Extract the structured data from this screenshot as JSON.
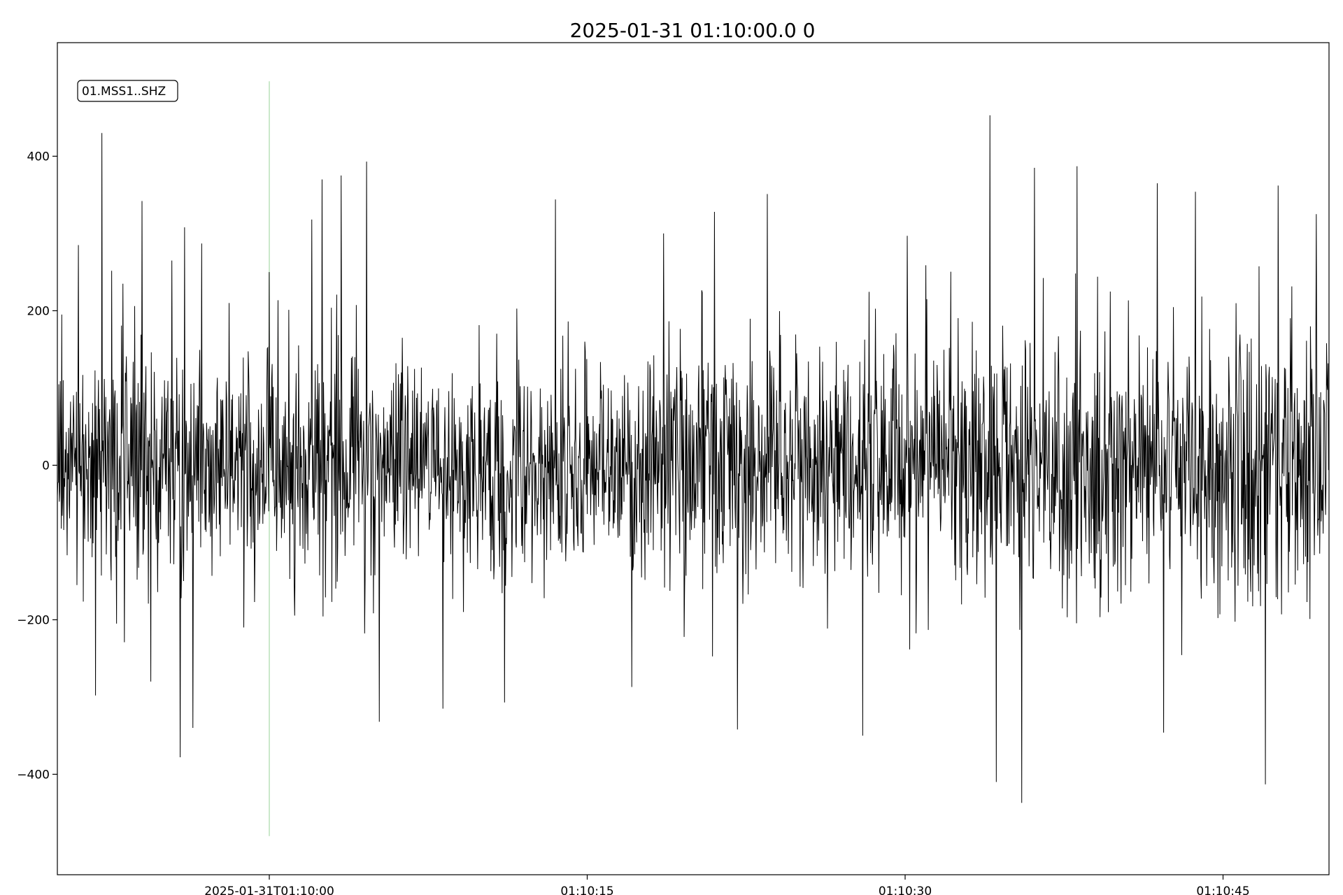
{
  "chart_data": {
    "type": "line",
    "title": "2025-01-31 01:10:00.0  0",
    "station_label": "01.MSS1..SHZ",
    "xlabel": "",
    "ylabel": "",
    "x_range_seconds": [
      -10,
      50
    ],
    "ylim": [
      -530,
      547
    ],
    "x_ticks": [
      {
        "t": 0,
        "label": "2025-01-31T01:10:00"
      },
      {
        "t": 15,
        "label": "01:10:15"
      },
      {
        "t": 30,
        "label": "01:10:30"
      },
      {
        "t": 45,
        "label": "01:10:45"
      }
    ],
    "y_ticks": [
      {
        "v": 400,
        "label": "400"
      },
      {
        "v": 200,
        "label": "200"
      },
      {
        "v": 0,
        "label": "0"
      },
      {
        "v": -200,
        "label": "−200"
      },
      {
        "v": -400,
        "label": "−400"
      }
    ],
    "marker": {
      "t": 0,
      "ymin": -480,
      "ymax": 497,
      "color": "#b9e0b9"
    },
    "trace_color": "#000000",
    "series": [
      {
        "peaks": [
          {
            "t": -9.8,
            "v": 195
          },
          {
            "t": -9.0,
            "v": 285
          },
          {
            "t": -8.2,
            "v": -298
          },
          {
            "t": -7.9,
            "v": 430
          },
          {
            "t": -7.2,
            "v": -205
          },
          {
            "t": -6.9,
            "v": 235
          },
          {
            "t": -6.0,
            "v": 342
          },
          {
            "t": -5.6,
            "v": -280
          },
          {
            "t": -4.6,
            "v": 265
          },
          {
            "t": -4.2,
            "v": -378
          },
          {
            "t": -4.0,
            "v": 308
          },
          {
            "t": -3.6,
            "v": -340
          },
          {
            "t": -3.2,
            "v": 287
          },
          {
            "t": -1.9,
            "v": 210
          },
          {
            "t": -1.2,
            "v": -210
          },
          {
            "t": 0.0,
            "v": 250
          },
          {
            "t": 2.0,
            "v": 318
          },
          {
            "t": 2.5,
            "v": 370
          },
          {
            "t": 3.4,
            "v": 375
          },
          {
            "t": 4.6,
            "v": 393
          },
          {
            "t": 5.2,
            "v": -332
          },
          {
            "t": 8.2,
            "v": -315
          },
          {
            "t": 11.1,
            "v": -307
          },
          {
            "t": 13.5,
            "v": 344
          },
          {
            "t": 17.1,
            "v": -287
          },
          {
            "t": 18.6,
            "v": 300
          },
          {
            "t": 21.0,
            "v": 328
          },
          {
            "t": 22.1,
            "v": -342
          },
          {
            "t": 23.5,
            "v": 351
          },
          {
            "t": 28.0,
            "v": -350
          },
          {
            "t": 30.1,
            "v": 297
          },
          {
            "t": 34.0,
            "v": 453
          },
          {
            "t": 34.3,
            "v": -410
          },
          {
            "t": 35.5,
            "v": -437
          },
          {
            "t": 36.1,
            "v": 385
          },
          {
            "t": 38.1,
            "v": 387
          },
          {
            "t": 41.9,
            "v": 365
          },
          {
            "t": 42.2,
            "v": -346
          },
          {
            "t": 43.7,
            "v": 354
          },
          {
            "t": 47.0,
            "v": -413
          },
          {
            "t": 47.6,
            "v": 362
          },
          {
            "t": 49.4,
            "v": 325
          }
        ]
      }
    ]
  }
}
